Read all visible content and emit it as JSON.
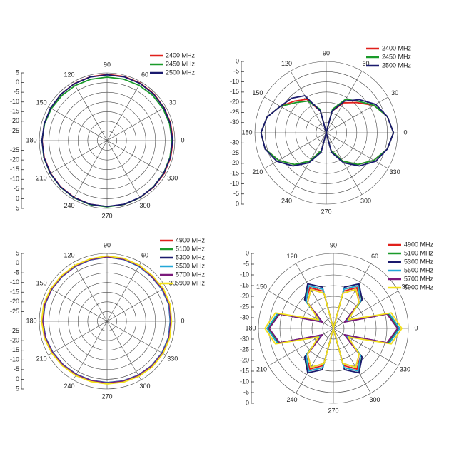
{
  "chart_data": [
    {
      "type": "polar",
      "theta": [
        0,
        15,
        30,
        45,
        60,
        75,
        90,
        105,
        120,
        135,
        150,
        165,
        180,
        195,
        210,
        225,
        240,
        255,
        270,
        285,
        300,
        315,
        330,
        345
      ],
      "thetaticks": [
        0,
        30,
        60,
        90,
        120,
        150,
        180,
        210,
        240,
        270,
        300,
        330
      ],
      "rlim": [
        -30,
        5
      ],
      "rticks": [
        -25,
        -20,
        -15,
        -10,
        -5,
        0,
        5
      ],
      "series": [
        {
          "name": "2400 MHz",
          "color": "#e0201b",
          "values": [
            4,
            4,
            4,
            4.2,
            4.3,
            4.3,
            4.2,
            4.1,
            4,
            3.8,
            3.6,
            3.5,
            3.5,
            3.6,
            3.7,
            3.8,
            3.9,
            4,
            4.1,
            4.1,
            4,
            4,
            4,
            4
          ]
        },
        {
          "name": "2450 MHz",
          "color": "#1a9a2a",
          "values": [
            3.5,
            3.4,
            3.3,
            3.2,
            3,
            2.9,
            2.8,
            2.8,
            2.9,
            3,
            3.2,
            3.4,
            3.6,
            3.8,
            3.9,
            4,
            4.1,
            4.2,
            4.2,
            4.1,
            4,
            3.8,
            3.7,
            3.6
          ]
        },
        {
          "name": "2500 MHz",
          "color": "#1a1a6e",
          "values": [
            3.8,
            3.8,
            3.9,
            4,
            4.1,
            4.1,
            4,
            4,
            3.9,
            3.8,
            3.7,
            3.6,
            3.6,
            3.7,
            3.8,
            3.9,
            4,
            4,
            4,
            4,
            3.9,
            3.9,
            3.8,
            3.8
          ]
        }
      ]
    },
    {
      "type": "polar",
      "theta": [
        0,
        15,
        30,
        45,
        60,
        75,
        90,
        105,
        120,
        135,
        150,
        165,
        180,
        195,
        210,
        225,
        240,
        255,
        270,
        285,
        300,
        315,
        330,
        345
      ],
      "thetaticks": [
        0,
        30,
        60,
        90,
        120,
        150,
        180,
        210,
        240,
        270,
        300,
        330
      ],
      "rlim": [
        -35,
        0
      ],
      "rticks": [
        -30,
        -25,
        -20,
        -15,
        -10,
        -5,
        0
      ],
      "series": [
        {
          "name": "2400 MHz",
          "color": "#e0201b",
          "values": [
            -2,
            -4,
            -8,
            -14,
            -18,
            -24,
            -35,
            -24,
            -16,
            -13,
            -9,
            -5,
            -3,
            -4,
            -8,
            -13,
            -19,
            -26,
            -35,
            -26,
            -19,
            -13,
            -8,
            -4
          ]
        },
        {
          "name": "2450 MHz",
          "color": "#1a9a2a",
          "values": [
            -2,
            -4,
            -8,
            -13,
            -16,
            -23,
            -35,
            -23,
            -17,
            -14,
            -9,
            -5,
            -3,
            -4,
            -8,
            -13,
            -19,
            -26,
            -35,
            -26,
            -19,
            -13,
            -8,
            -4
          ]
        },
        {
          "name": "2500 MHz",
          "color": "#1a1a6e",
          "values": [
            -2,
            -4,
            -7,
            -12,
            -17,
            -24,
            -35,
            -24,
            -14,
            -11,
            -9,
            -5,
            -3,
            -4,
            -7,
            -12,
            -18,
            -25,
            -35,
            -25,
            -18,
            -12,
            -7,
            -4
          ]
        }
      ]
    },
    {
      "type": "polar",
      "theta": [
        0,
        15,
        30,
        45,
        60,
        75,
        90,
        105,
        120,
        135,
        150,
        165,
        180,
        195,
        210,
        225,
        240,
        255,
        270,
        285,
        300,
        315,
        330,
        345
      ],
      "thetaticks": [
        0,
        30,
        60,
        90,
        120,
        150,
        180,
        210,
        240,
        270,
        300,
        330
      ],
      "rlim": [
        -30,
        5
      ],
      "rticks": [
        -25,
        -20,
        -15,
        -10,
        -5,
        0,
        5
      ],
      "series": [
        {
          "name": "4900 MHz",
          "color": "#e0201b",
          "values": [
            3,
            3.5,
            3.2,
            2.8,
            3,
            3.3,
            3.4,
            3.1,
            3,
            2.9,
            3.2,
            3.5,
            3.3,
            3,
            2.6,
            2.2,
            2,
            1.9,
            2,
            2.2,
            2.5,
            2.8,
            3.1,
            3.2
          ]
        },
        {
          "name": "5100 MHz",
          "color": "#1a9a2a",
          "values": [
            2.8,
            3.2,
            3,
            2.6,
            2.9,
            3.2,
            3.3,
            3,
            2.9,
            2.8,
            3.1,
            3.3,
            3.2,
            2.9,
            2.5,
            2.1,
            1.9,
            1.8,
            1.9,
            2.1,
            2.4,
            2.7,
            2.9,
            3
          ]
        },
        {
          "name": "5300 MHz",
          "color": "#1a1a6e",
          "values": [
            2.6,
            3,
            2.8,
            2.5,
            2.8,
            3,
            3.1,
            2.8,
            2.7,
            2.7,
            3,
            3.2,
            3.1,
            2.8,
            2.3,
            1.9,
            1.7,
            1.6,
            1.7,
            1.9,
            2.2,
            2.5,
            2.7,
            2.8
          ]
        },
        {
          "name": "5500 MHz",
          "color": "#22a7d8",
          "values": [
            2.7,
            3.1,
            2.9,
            2.6,
            2.7,
            3.1,
            3.2,
            2.9,
            2.8,
            2.8,
            3,
            3.3,
            3.2,
            2.9,
            2.4,
            2,
            1.8,
            1.7,
            1.8,
            2,
            2.3,
            2.6,
            2.8,
            2.9
          ]
        },
        {
          "name": "5700 MHz",
          "color": "#7b1a7b",
          "values": [
            2.9,
            3.3,
            3.1,
            2.7,
            3,
            3.2,
            3.3,
            3,
            2.9,
            2.9,
            3.1,
            3.4,
            3.3,
            3,
            2.5,
            2.1,
            1.9,
            1.8,
            1.9,
            2.1,
            2.4,
            2.7,
            3,
            3.1
          ]
        },
        {
          "name": "5900 MHz",
          "color": "#f2e01a",
          "values": [
            3.3,
            3.7,
            3.6,
            3.2,
            3.4,
            3.6,
            3.7,
            3.4,
            3.3,
            3.3,
            3.6,
            3.9,
            3.8,
            3.5,
            3,
            2.6,
            2.4,
            2.3,
            2.4,
            2.6,
            2.9,
            3.2,
            3.4,
            3.5
          ]
        }
      ]
    },
    {
      "type": "polar",
      "theta": [
        0,
        15,
        30,
        45,
        60,
        75,
        90,
        105,
        120,
        135,
        150,
        165,
        180,
        195,
        210,
        225,
        240,
        255,
        270,
        285,
        300,
        315,
        330,
        345
      ],
      "thetaticks": [
        0,
        30,
        60,
        90,
        120,
        150,
        180,
        210,
        240,
        270,
        300,
        330
      ],
      "rlim": [
        -35,
        0
      ],
      "rticks": [
        -30,
        -25,
        -20,
        -15,
        -10,
        -5,
        0
      ],
      "series": [
        {
          "name": "4900 MHz",
          "color": "#e0201b",
          "values": [
            -4,
            -8,
            -28,
            -17,
            -13,
            -17,
            -35,
            -17,
            -13,
            -17,
            -28,
            -8,
            -4,
            -8,
            -28,
            -17,
            -13,
            -17,
            -35,
            -17,
            -13,
            -17,
            -28,
            -8
          ]
        },
        {
          "name": "5100 MHz",
          "color": "#1a9a2a",
          "values": [
            -4.5,
            -8.5,
            -28,
            -16,
            -12,
            -16,
            -35,
            -16,
            -12,
            -16,
            -28,
            -8.5,
            -4.5,
            -8.5,
            -28,
            -16,
            -12,
            -16,
            -35,
            -16,
            -12,
            -16,
            -28,
            -8.5
          ]
        },
        {
          "name": "5300 MHz",
          "color": "#1a1a6e",
          "values": [
            -5,
            -9,
            -29,
            -16,
            -11,
            -15,
            -35,
            -15,
            -11,
            -16,
            -29,
            -9,
            -5,
            -9,
            -29,
            -16,
            -11,
            -15,
            -35,
            -15,
            -11,
            -16,
            -29,
            -9
          ]
        },
        {
          "name": "5500 MHz",
          "color": "#22a7d8",
          "values": [
            -4,
            -8,
            -28,
            -17,
            -12,
            -16,
            -35,
            -16,
            -12,
            -17,
            -28,
            -8,
            -4,
            -8,
            -28,
            -17,
            -12,
            -16,
            -35,
            -16,
            -12,
            -17,
            -28,
            -8
          ]
        },
        {
          "name": "5700 MHz",
          "color": "#7b1a7b",
          "values": [
            -5,
            -9,
            -29,
            -18,
            -14,
            -18,
            -35,
            -18,
            -14,
            -18,
            -29,
            -9,
            -5,
            -9,
            -29,
            -18,
            -14,
            -18,
            -35,
            -18,
            -14,
            -18,
            -29,
            -9
          ]
        },
        {
          "name": "5900 MHz",
          "color": "#f2e01a",
          "values": [
            -3,
            -7,
            -27,
            -18,
            -14,
            -18,
            -35,
            -18,
            -14,
            -18,
            -27,
            -7,
            -3,
            -7,
            -27,
            -18,
            -14,
            -18,
            -35,
            -18,
            -14,
            -18,
            -27,
            -7
          ]
        }
      ]
    }
  ]
}
